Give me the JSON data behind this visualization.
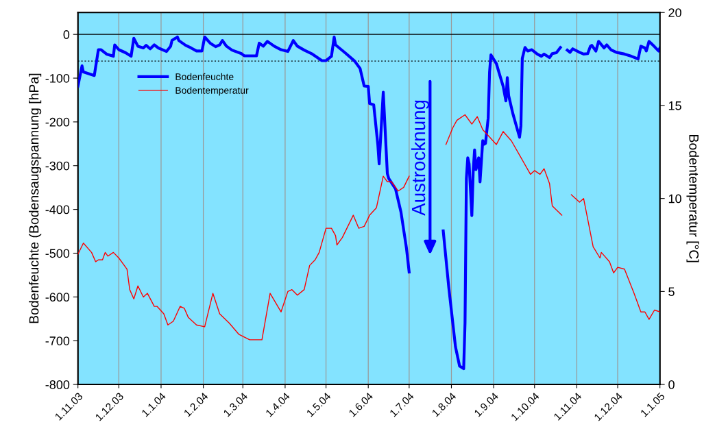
{
  "chart_data": {
    "type": "line",
    "xlabel": null,
    "ylabel": "Bodenfeuchte (Bodensaugspannung [hPa]",
    "y2label": "Bodentemperatur [°C]",
    "xlim": [
      "2003-11-01",
      "2005-01-01"
    ],
    "xticks": [
      {
        "value": "2003-11-01",
        "label": "1.11.03"
      },
      {
        "value": "2003-12-01",
        "label": "1.12.03"
      },
      {
        "value": "2004-01-01",
        "label": "1.1.04"
      },
      {
        "value": "2004-02-01",
        "label": "1.2.04"
      },
      {
        "value": "2004-03-01",
        "label": "1.3.04"
      },
      {
        "value": "2004-04-01",
        "label": "1.4.04"
      },
      {
        "value": "2004-05-01",
        "label": "1.5.04"
      },
      {
        "value": "2004-06-01",
        "label": "1.6.04"
      },
      {
        "value": "2004-07-01",
        "label": "1.7.04"
      },
      {
        "value": "2004-08-01",
        "label": "1.8.04"
      },
      {
        "value": "2004-09-01",
        "label": "1.9.04"
      },
      {
        "value": "2004-10-01",
        "label": "1.10.04"
      },
      {
        "value": "2004-11-01",
        "label": "1.11.04"
      },
      {
        "value": "2004-12-01",
        "label": "1.12.04"
      },
      {
        "value": "2005-01-01",
        "label": "1.1.05"
      }
    ],
    "ylim": [
      -800,
      50
    ],
    "yticks": [
      -800,
      -700,
      -600,
      -500,
      -400,
      -300,
      -200,
      -100,
      0
    ],
    "y2lim": [
      0,
      20
    ],
    "y2ticks": [
      0,
      5,
      10,
      15,
      20
    ],
    "grid": "x",
    "legend": "top left",
    "marker": "none",
    "line_style": "solid",
    "ref_lines": [
      {
        "axis": "y",
        "value": 0,
        "color": "#000000",
        "line_style": "solid"
      },
      {
        "axis": "y",
        "value": -61,
        "color": "#000000",
        "line_style": "dotted"
      }
    ],
    "annotations": [
      "Austrocknung"
    ],
    "series": [
      {
        "name": "Bodenfeuchte",
        "color": "#0000ff",
        "x": [
          "2003-11-01",
          "2003-11-04",
          "2003-11-05",
          "2003-11-13",
          "2003-11-16",
          "2003-11-18",
          "2003-11-22",
          "2003-11-27",
          "2003-11-28",
          "2003-12-01",
          "2003-12-06",
          "2003-12-10",
          "2003-12-12",
          "2003-12-15",
          "2003-12-19",
          "2003-12-21",
          "2003-12-24",
          "2003-12-27",
          "2003-12-30",
          "2004-01-05",
          "2004-01-08",
          "2004-01-09",
          "2004-01-13",
          "2004-01-14",
          "2004-01-19",
          "2004-01-23",
          "2004-01-27",
          "2004-01-31",
          "2004-02-02",
          "2004-02-06",
          "2004-02-10",
          "2004-02-13",
          "2004-02-15",
          "2004-02-18",
          "2004-02-22",
          "2004-02-29",
          "2004-03-02",
          "2004-03-06",
          "2004-03-11",
          "2004-03-13",
          "2004-03-16",
          "2004-03-19",
          "2004-03-24",
          "2004-03-29",
          "2004-04-03",
          "2004-04-07",
          "2004-04-10",
          "2004-04-15",
          "2004-04-21",
          "2004-04-28",
          "2004-05-01",
          "2004-05-05",
          "2004-05-07",
          "2004-05-08",
          "2004-05-15",
          "2004-05-22",
          "2004-05-26",
          "2004-05-29",
          "2004-06-01",
          "2004-06-02",
          "2004-06-05",
          "2004-06-08",
          "2004-06-09",
          "2004-06-12",
          "2004-06-15",
          "2004-06-16",
          "2004-06-21",
          "2004-06-25",
          "2004-06-29",
          "2004-07-01",
          "2004-07-14",
          "2004-07-26",
          "2004-07-30",
          "2004-08-02",
          "2004-08-04",
          "2004-08-07",
          "2004-08-10",
          "2004-08-11",
          "2004-08-12",
          "2004-08-13",
          "2004-08-14",
          "2004-08-16",
          "2004-08-17",
          "2004-08-18",
          "2004-08-19",
          "2004-08-21",
          "2004-08-22",
          "2004-08-24",
          "2004-08-25",
          "2004-08-26",
          "2004-08-28",
          "2004-08-29",
          "2004-08-30",
          "2004-09-03",
          "2004-09-05",
          "2004-09-08",
          "2004-09-10",
          "2004-09-11",
          "2004-09-12",
          "2004-09-15",
          "2004-09-18",
          "2004-09-20",
          "2004-09-21",
          "2004-09-22",
          "2004-09-24",
          "2004-09-26",
          "2004-09-29",
          "2004-10-03",
          "2004-10-06",
          "2004-10-08",
          "2004-10-12",
          "2004-10-14",
          "2004-10-17",
          "2004-10-20",
          "2004-10-22",
          "2004-10-25",
          "2004-10-27",
          "2004-10-29",
          "2004-11-03",
          "2004-11-06",
          "2004-11-09",
          "2004-11-11",
          "2004-11-12",
          "2004-11-15",
          "2004-11-17",
          "2004-11-21",
          "2004-11-23",
          "2004-11-26",
          "2004-11-30",
          "2004-12-06",
          "2004-12-11",
          "2004-12-16",
          "2004-12-18",
          "2004-12-21",
          "2004-12-22",
          "2004-12-24",
          "2004-12-25",
          "2004-12-28",
          "2004-12-31",
          "2005-01-01"
        ],
        "values": [
          -118,
          -72,
          -86,
          -94,
          -35,
          -35,
          -45,
          -50,
          -24,
          -35,
          -42,
          -50,
          -9,
          -27,
          -31,
          -25,
          -33,
          -24,
          -31,
          -39,
          -27,
          -14,
          -6,
          -14,
          -25,
          -31,
          -38,
          -38,
          -6,
          -20,
          -28,
          -24,
          -14,
          -27,
          -36,
          -44,
          -49,
          -49,
          -49,
          -20,
          -27,
          -16,
          -27,
          -35,
          -39,
          -14,
          -27,
          -36,
          -45,
          -60,
          -60,
          -50,
          -6,
          -24,
          -42,
          -61,
          -78,
          -118,
          -119,
          -158,
          -161,
          -251,
          -296,
          -132,
          -318,
          -329,
          -353,
          -406,
          -488,
          -543,
          null,
          -449,
          -576,
          -659,
          -714,
          -758,
          -764,
          -659,
          -329,
          -282,
          -296,
          -414,
          -312,
          -264,
          -309,
          -282,
          -337,
          -243,
          -251,
          -249,
          -191,
          -86,
          -47,
          -67,
          -88,
          -119,
          -152,
          -99,
          -140,
          -180,
          -213,
          -235,
          -209,
          -55,
          -30,
          -38,
          -35,
          -45,
          -50,
          -45,
          -53,
          -44,
          -42,
          -30,
          null,
          -36,
          -41,
          -33,
          -41,
          -45,
          -44,
          -27,
          -25,
          -38,
          -16,
          -31,
          -24,
          -35,
          -41,
          -45,
          -50,
          -56,
          -27,
          -31,
          -38,
          -16,
          -19,
          -28,
          -38,
          -31
        ]
      },
      {
        "name": "Bodentemperatur",
        "color": "#ff0000",
        "axis": "y2",
        "x": [
          "2003-11-01",
          "2003-11-05",
          "2003-11-11",
          "2003-11-14",
          "2003-11-16",
          "2003-11-19",
          "2003-11-21",
          "2003-11-23",
          "2003-11-27",
          "2003-12-01",
          "2003-12-04",
          "2003-12-07",
          "2003-12-09",
          "2003-12-12",
          "2003-12-15",
          "2003-12-19",
          "2003-12-22",
          "2003-12-27",
          "2003-12-29",
          "2004-01-03",
          "2004-01-06",
          "2004-01-10",
          "2004-01-15",
          "2004-01-18",
          "2004-01-21",
          "2004-01-27",
          "2004-02-02",
          "2004-02-08",
          "2004-02-13",
          "2004-02-20",
          "2004-02-27",
          "2004-03-06",
          "2004-03-15",
          "2004-03-21",
          "2004-03-25",
          "2004-03-29",
          "2004-04-03",
          "2004-04-06",
          "2004-04-10",
          "2004-04-15",
          "2004-04-19",
          "2004-04-23",
          "2004-04-26",
          "2004-05-01",
          "2004-05-05",
          "2004-05-08",
          "2004-05-09",
          "2004-05-13",
          "2004-05-17",
          "2004-05-21",
          "2004-05-25",
          "2004-05-29",
          "2004-06-02",
          "2004-06-07",
          "2004-06-12",
          "2004-06-15",
          "2004-06-18",
          "2004-06-23",
          "2004-06-27",
          "2004-07-01",
          "2004-07-14",
          "2004-07-28",
          "2004-08-02",
          "2004-08-05",
          "2004-08-07",
          "2004-08-11",
          "2004-08-16",
          "2004-08-20",
          "2004-08-24",
          "2004-08-29",
          "2004-09-03",
          "2004-09-08",
          "2004-09-14",
          "2004-09-21",
          "2004-09-28",
          "2004-10-01",
          "2004-10-05",
          "2004-10-08",
          "2004-10-12",
          "2004-10-14",
          "2004-10-21",
          "2004-10-24",
          "2004-10-28",
          "2004-11-03",
          "2004-11-06",
          "2004-11-13",
          "2004-11-18",
          "2004-11-19",
          "2004-11-25",
          "2004-11-28",
          "2004-12-01",
          "2004-12-06",
          "2004-12-13",
          "2004-12-18",
          "2004-12-21",
          "2004-12-24",
          "2004-12-28",
          "2005-01-01"
        ],
        "values": [
          7.0,
          7.6,
          7.1,
          6.6,
          6.7,
          6.7,
          7.1,
          6.9,
          7.1,
          6.8,
          6.5,
          6.2,
          5.1,
          4.6,
          5.3,
          4.7,
          4.9,
          4.2,
          4.2,
          3.8,
          3.2,
          3.4,
          4.2,
          4.1,
          3.6,
          3.2,
          3.1,
          4.9,
          3.8,
          3.3,
          2.7,
          2.4,
          2.4,
          4.9,
          4.4,
          3.9,
          5.0,
          5.1,
          4.8,
          5.1,
          6.4,
          6.7,
          7.1,
          8.4,
          8.4,
          8.0,
          7.5,
          7.9,
          8.5,
          9.1,
          8.4,
          8.5,
          9.1,
          9.5,
          11.2,
          10.9,
          10.9,
          10.4,
          10.6,
          11.2,
          null,
          12.9,
          13.8,
          14.2,
          14.3,
          14.5,
          14.0,
          14.4,
          13.7,
          13.3,
          12.9,
          13.6,
          13.1,
          12.2,
          11.3,
          11.5,
          11.3,
          11.6,
          10.8,
          9.6,
          9.1,
          null,
          10.2,
          9.8,
          10.0,
          7.4,
          6.8,
          7.1,
          6.6,
          6.0,
          6.3,
          6.2,
          4.9,
          3.9,
          3.9,
          3.5,
          4.0,
          3.9
        ]
      }
    ]
  }
}
